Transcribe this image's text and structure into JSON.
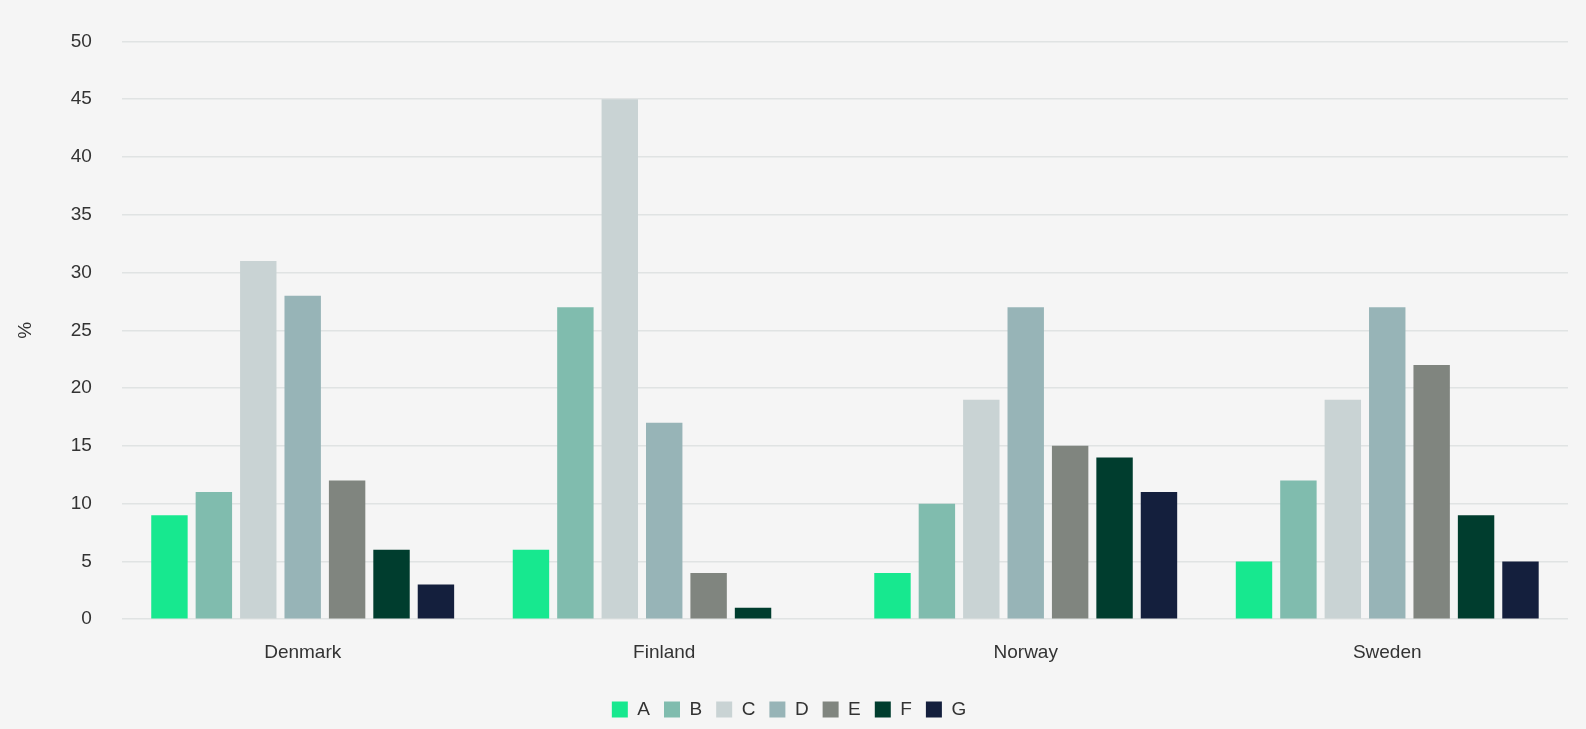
{
  "chart_data": {
    "type": "bar",
    "ylabel": "%",
    "categories": [
      "Denmark",
      "Finland",
      "Norway",
      "Sweden"
    ],
    "series": [
      {
        "name": "A",
        "color": "#17e88f",
        "values": [
          9,
          6,
          4,
          5
        ]
      },
      {
        "name": "B",
        "color": "#80bcae",
        "values": [
          11,
          27,
          10,
          12
        ]
      },
      {
        "name": "C",
        "color": "#c9d3d4",
        "values": [
          31,
          45,
          19,
          19
        ]
      },
      {
        "name": "D",
        "color": "#97b4b7",
        "values": [
          28,
          17,
          27,
          27
        ]
      },
      {
        "name": "E",
        "color": "#80857f",
        "values": [
          12,
          4,
          15,
          22
        ]
      },
      {
        "name": "F",
        "color": "#003d2e",
        "values": [
          6,
          1,
          14,
          9
        ]
      },
      {
        "name": "G",
        "color": "#141f3d",
        "values": [
          3,
          0,
          11,
          5
        ]
      }
    ],
    "ylim": [
      0,
      50
    ],
    "yticks": [
      0,
      5,
      10,
      15,
      20,
      25,
      30,
      35,
      40,
      45,
      50
    ],
    "grid": "y",
    "legend": "bottom"
  }
}
